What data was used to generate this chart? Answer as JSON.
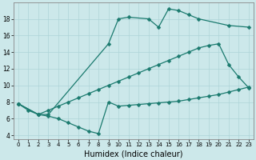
{
  "bg_color": "#cce8ea",
  "line_color": "#1a7a6e",
  "grid_color": "#aed4d8",
  "xlabel": "Humidex (Indice chaleur)",
  "xlabel_fontsize": 7,
  "tick_fontsize": 5.5,
  "xlim": [
    -0.5,
    23.5
  ],
  "ylim": [
    3.5,
    20.0
  ],
  "yticks": [
    4,
    6,
    8,
    10,
    12,
    14,
    16,
    18
  ],
  "xticks": [
    0,
    1,
    2,
    3,
    4,
    5,
    6,
    7,
    8,
    9,
    10,
    11,
    12,
    13,
    14,
    15,
    16,
    17,
    18,
    19,
    20,
    21,
    22,
    23
  ],
  "series": [
    {
      "x": [
        0,
        2,
        3,
        9,
        10,
        11,
        13,
        14,
        15,
        16,
        17,
        18,
        21,
        23
      ],
      "y": [
        7.8,
        6.5,
        6.5,
        15.0,
        18.0,
        18.2,
        18.0,
        17.0,
        19.2,
        19.0,
        18.5,
        18.0,
        17.2,
        17.0
      ]
    },
    {
      "x": [
        0,
        2,
        3,
        4,
        5,
        6,
        7,
        8,
        9,
        10,
        11,
        12,
        13,
        14,
        15,
        16,
        17,
        18,
        19,
        20,
        21,
        22,
        23
      ],
      "y": [
        7.8,
        6.5,
        7.0,
        7.5,
        8.0,
        8.5,
        9.0,
        9.5,
        10.0,
        10.5,
        11.0,
        11.5,
        12.0,
        12.5,
        13.0,
        13.5,
        14.0,
        14.5,
        14.8,
        15.0,
        12.5,
        11.0,
        9.7
      ]
    },
    {
      "x": [
        0,
        1,
        2,
        3,
        4,
        5,
        6,
        7,
        8,
        9,
        10,
        11,
        12,
        13,
        14,
        15,
        16,
        17,
        18,
        19,
        20,
        21,
        22,
        23
      ],
      "y": [
        7.8,
        7.0,
        6.5,
        6.3,
        6.0,
        5.5,
        5.0,
        4.5,
        4.2,
        8.0,
        7.5,
        7.6,
        7.7,
        7.8,
        7.9,
        8.0,
        8.1,
        8.3,
        8.5,
        8.7,
        8.9,
        9.2,
        9.5,
        9.8
      ]
    }
  ]
}
